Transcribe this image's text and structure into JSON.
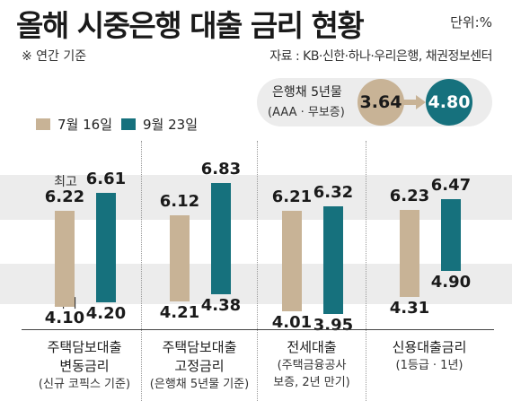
{
  "header": {
    "title": "올해 시중은행 대출 금리 현황",
    "unit": "단위:%",
    "note": "※ 연간 기준",
    "source": "자료 : KB·신한·하나·우리은행, 채권정보센터"
  },
  "bond": {
    "label": "은행채 5년물",
    "sublabel": "(AAA · 무보증)",
    "before": "3.64",
    "after": "4.80"
  },
  "legend": {
    "series1": "7월 16일",
    "series2": "9월 23일"
  },
  "tags": {
    "max": "최고",
    "min": "최저"
  },
  "colors": {
    "series1": "#c8b396",
    "series2": "#16717d",
    "band": "#ececec"
  },
  "chart_data": {
    "type": "bar",
    "subtype": "floating-range",
    "series": [
      {
        "name": "7월 16일",
        "low": [
          4.1,
          4.21,
          4.01,
          4.31
        ],
        "high": [
          6.22,
          6.12,
          6.21,
          6.23
        ]
      },
      {
        "name": "9월 23일",
        "low": [
          4.2,
          4.38,
          3.95,
          4.9
        ],
        "high": [
          6.61,
          6.83,
          6.32,
          6.47
        ]
      }
    ],
    "categories": [
      {
        "line1": "주택담보대출",
        "line2": "변동금리",
        "line3": "(신규 코픽스 기준)"
      },
      {
        "line1": "주택담보대출",
        "line2": "고정금리",
        "line3": "(은행채 5년물 기준)"
      },
      {
        "line1": "전세대출",
        "line2": "(주택금융공사",
        "line3": "보증, 2년 만기)"
      },
      {
        "line1": "신용대출금리",
        "line2": "(1등급 · 1년)",
        "line3": ""
      }
    ],
    "labels": {
      "high": [
        [
          "6.22",
          "6.61"
        ],
        [
          "6.12",
          "6.83"
        ],
        [
          "6.21",
          "6.32"
        ],
        [
          "6.23",
          "6.47"
        ]
      ],
      "low": [
        [
          "4.10",
          "4.20"
        ],
        [
          "4.21",
          "4.38"
        ],
        [
          "4.01",
          "3.95"
        ],
        [
          "4.31",
          "4.90"
        ]
      ]
    }
  }
}
